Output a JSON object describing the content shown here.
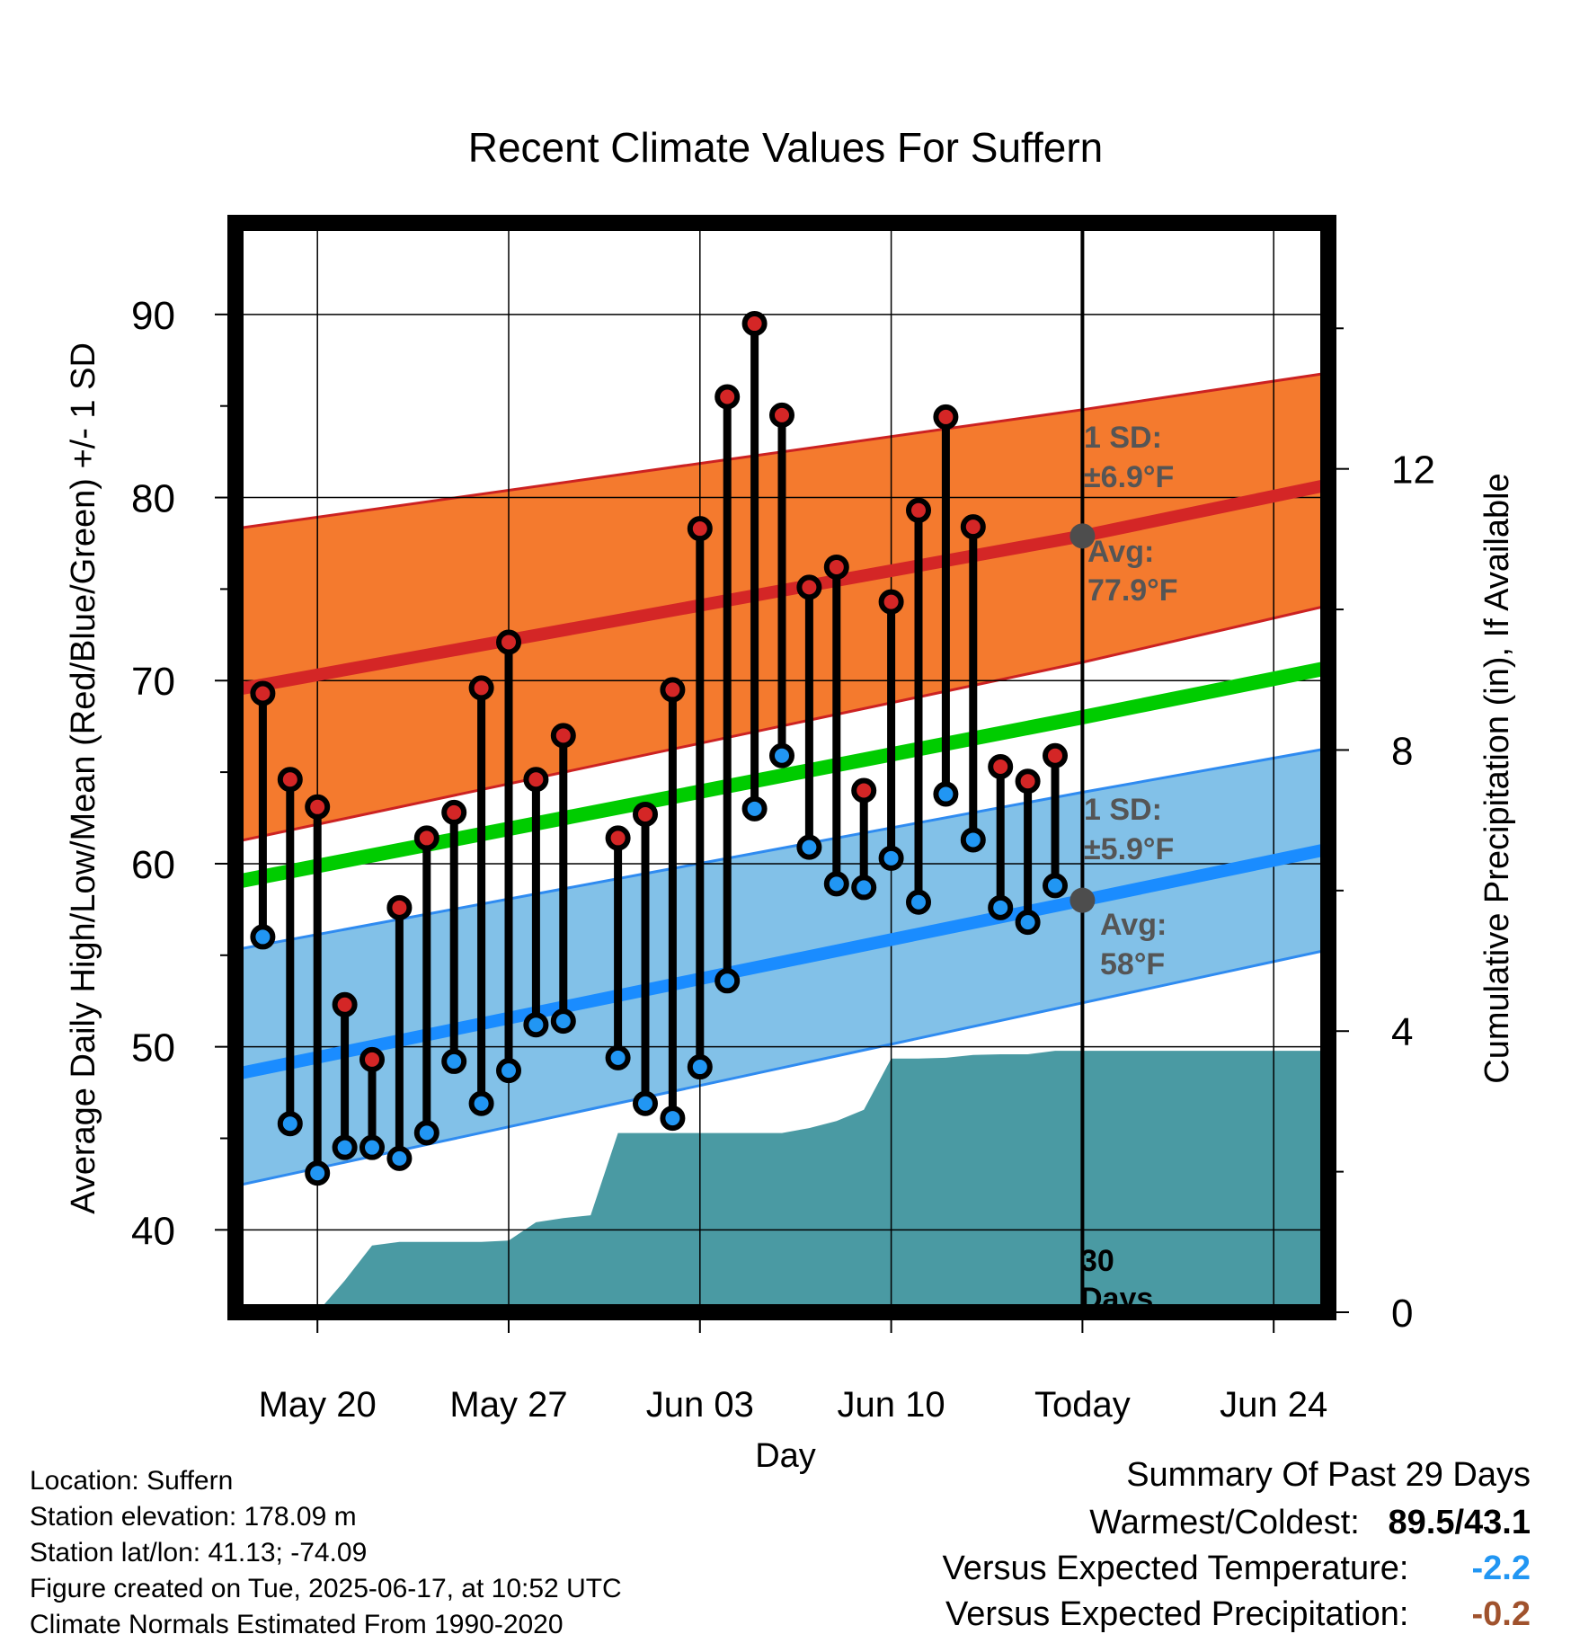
{
  "chart_data": {
    "type": "line",
    "title": "Recent Climate Values For Suffern",
    "xlabel": "Day",
    "ylabel": "Average Daily High/Low/Mean (Red/Blue/Green) +/- 1 SD",
    "y2label": "Cumulative Precipitation (in), If Available",
    "x_ticks": [
      {
        "date": "May 20",
        "label": "May 20"
      },
      {
        "date": "May 27",
        "label": "May 27"
      },
      {
        "date": "Jun 03",
        "label": "Jun 03"
      },
      {
        "date": "Jun 10",
        "label": "Jun 10"
      },
      {
        "date": "Jun 17",
        "label": "Today"
      },
      {
        "date": "Jun 24",
        "label": "Jun 24"
      }
    ],
    "xlim": [
      "May 17",
      "Jun 26"
    ],
    "ylim": [
      35.5,
      95
    ],
    "y_ticks": [
      40,
      50,
      60,
      70,
      80,
      90
    ],
    "y2lim": [
      0,
      15.5
    ],
    "y2_ticks": [
      0,
      4,
      8,
      12
    ],
    "grid": true,
    "colors": {
      "high_band": "#f47a2e",
      "high_line": "#d42626",
      "high_edge": "#cc2222",
      "low_band": "#82c1e8",
      "low_line": "#1a8cff",
      "low_edge": "#2f8bf0",
      "mean_line": "#00cc00",
      "precip": "#4a9aa3",
      "high_marker": "#d42626",
      "low_marker": "#2196f3",
      "today_marker": "#4d4d4d",
      "annotation": "#555555"
    },
    "series": [
      {
        "name": "High",
        "dates": [
          "May 18",
          "May 19",
          "May 20",
          "May 21",
          "May 22",
          "May 23",
          "May 24",
          "May 25",
          "May 26",
          "May 27",
          "May 28",
          "May 29",
          "May 31",
          "Jun 01",
          "Jun 02",
          "Jun 03",
          "Jun 04",
          "Jun 05",
          "Jun 06",
          "Jun 07",
          "Jun 08",
          "Jun 09",
          "Jun 10",
          "Jun 11",
          "Jun 12",
          "Jun 13",
          "Jun 14",
          "Jun 15",
          "Jun 16"
        ],
        "values": [
          69.3,
          64.6,
          63.1,
          52.3,
          49.3,
          57.6,
          61.4,
          62.8,
          69.6,
          72.1,
          64.6,
          67.0,
          61.4,
          62.7,
          69.5,
          78.3,
          85.5,
          89.5,
          84.5,
          75.1,
          76.2,
          64.0,
          74.3,
          79.3,
          84.4,
          78.4,
          65.3,
          64.5,
          65.9
        ]
      },
      {
        "name": "Low",
        "dates": [
          "May 18",
          "May 19",
          "May 20",
          "May 21",
          "May 22",
          "May 23",
          "May 24",
          "May 25",
          "May 26",
          "May 27",
          "May 28",
          "May 29",
          "May 31",
          "Jun 01",
          "Jun 02",
          "Jun 03",
          "Jun 04",
          "Jun 05",
          "Jun 06",
          "Jun 07",
          "Jun 08",
          "Jun 09",
          "Jun 10",
          "Jun 11",
          "Jun 12",
          "Jun 13",
          "Jun 14",
          "Jun 15",
          "Jun 16"
        ],
        "values": [
          56.0,
          45.8,
          43.1,
          44.5,
          44.5,
          43.9,
          45.3,
          49.2,
          46.9,
          48.7,
          51.2,
          51.4,
          49.4,
          46.9,
          46.1,
          48.9,
          53.6,
          63.0,
          65.9,
          60.9,
          58.9,
          58.7,
          60.3,
          57.9,
          63.8,
          61.3,
          57.6,
          56.8,
          58.8
        ]
      },
      {
        "name": "Normal High",
        "dates": [
          "May 17",
          "Jun 17",
          "Jun 26"
        ],
        "values": [
          69.5,
          77.9,
          80.7
        ]
      },
      {
        "name": "Normal High +1 SD",
        "dates": [
          "May 17",
          "Jun 17",
          "Jun 26"
        ],
        "values": [
          78.3,
          84.8,
          86.8
        ]
      },
      {
        "name": "Normal High -1 SD",
        "dates": [
          "May 17",
          "Jun 17",
          "Jun 26"
        ],
        "values": [
          61.2,
          71.0,
          74.1
        ]
      },
      {
        "name": "Normal Mean",
        "dates": [
          "May 17",
          "Jun 17",
          "Jun 26"
        ],
        "values": [
          59.0,
          68.0,
          70.7
        ]
      },
      {
        "name": "Normal Low",
        "dates": [
          "May 17",
          "Jun 17",
          "Jun 26"
        ],
        "values": [
          48.5,
          58.0,
          60.8
        ]
      },
      {
        "name": "Normal Low +1 SD",
        "dates": [
          "May 17",
          "Jun 17",
          "Jun 26"
        ],
        "values": [
          55.3,
          63.9,
          66.3
        ]
      },
      {
        "name": "Normal Low -1 SD",
        "dates": [
          "May 17",
          "Jun 17",
          "Jun 26"
        ],
        "values": [
          42.4,
          52.4,
          55.3
        ]
      },
      {
        "name": "Cumulative Precipitation",
        "axis": "y2",
        "dates": [
          "May 17",
          "May 20",
          "May 21",
          "May 22",
          "May 23",
          "May 26",
          "May 27",
          "May 28",
          "May 29",
          "May 30",
          "May 31",
          "Jun 06",
          "Jun 07",
          "Jun 08",
          "Jun 09",
          "Jun 10",
          "Jun 11",
          "Jun 12",
          "Jun 13",
          "Jun 14",
          "Jun 15",
          "Jun 16",
          "Jun 26"
        ],
        "values": [
          0,
          0,
          0.45,
          0.95,
          1.0,
          1.0,
          1.02,
          1.28,
          1.34,
          1.38,
          2.55,
          2.55,
          2.62,
          2.72,
          2.88,
          3.61,
          3.61,
          3.62,
          3.66,
          3.67,
          3.67,
          3.72,
          3.72
        ]
      }
    ],
    "annotations": {
      "high_sd_label": "1 SD:",
      "high_sd_value": "±6.9°F",
      "high_avg_label": "Avg:",
      "high_avg_value": "77.9°F",
      "low_sd_label": "1 SD:",
      "low_sd_value": "±5.9°F",
      "low_avg_label": "Avg:",
      "low_avg_value": "58°F",
      "window_count": "30",
      "window_unit": "Days"
    }
  },
  "info": {
    "location": "Location: Suffern",
    "elevation": "Station elevation: 178.09 m",
    "latlon": "Station lat/lon: 41.13; -74.09",
    "created": "Figure created on Tue, 2025-06-17, at 10:52 UTC",
    "normals": "Climate Normals Estimated From 1990-2020"
  },
  "summary": {
    "heading": "Summary Of Past 29 Days",
    "warm_cold_label": "Warmest/Coldest:",
    "warm_cold_value": "89.5/43.1",
    "temp_label": "Versus Expected Temperature:",
    "temp_value": "-2.2",
    "temp_color": "#2196f3",
    "precip_label": "Versus Expected Precipitation:",
    "precip_value": "-0.2",
    "precip_color": "#a0522d"
  }
}
